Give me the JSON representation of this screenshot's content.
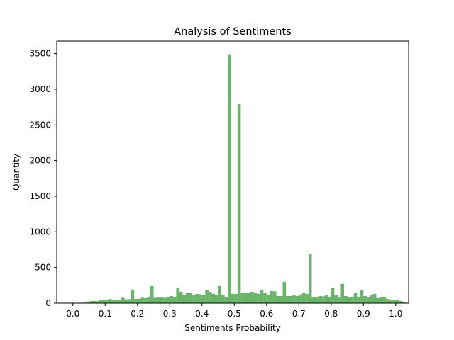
{
  "chart_data": {
    "type": "bar",
    "title": "Analysis of Sentiments",
    "xlabel": "Sentiments Probability",
    "ylabel": "Quantity",
    "xlim": [
      -0.05,
      1.04
    ],
    "ylim": [
      0,
      3675
    ],
    "grid": false,
    "bar_color": "#5aab5a",
    "bar_opacity": 0.9,
    "x_ticks": [
      0.0,
      0.1,
      0.2,
      0.3,
      0.4,
      0.5,
      0.6,
      0.7,
      0.8,
      0.9,
      1.0
    ],
    "x_tick_labels": [
      "0.0",
      "0.1",
      "0.2",
      "0.3",
      "0.4",
      "0.5",
      "0.6",
      "0.7",
      "0.8",
      "0.9",
      "1.0"
    ],
    "y_ticks": [
      0,
      500,
      1000,
      1500,
      2000,
      2500,
      3000,
      3500
    ],
    "y_tick_labels": [
      "0",
      "500",
      "1000",
      "1500",
      "2000",
      "2500",
      "3000",
      "3500"
    ],
    "bin_start": 0.0,
    "bin_width": 0.01,
    "values": [
      0,
      0,
      2,
      8,
      20,
      28,
      32,
      28,
      42,
      45,
      42,
      60,
      40,
      50,
      45,
      75,
      55,
      55,
      190,
      60,
      60,
      75,
      70,
      80,
      240,
      75,
      80,
      85,
      75,
      90,
      100,
      90,
      210,
      160,
      120,
      140,
      140,
      120,
      130,
      125,
      120,
      190,
      160,
      130,
      110,
      240,
      120,
      80,
      3490,
      130,
      130,
      2790,
      140,
      140,
      140,
      160,
      140,
      130,
      190,
      150,
      120,
      170,
      165,
      100,
      100,
      300,
      100,
      100,
      110,
      100,
      120,
      150,
      130,
      690,
      80,
      90,
      100,
      95,
      110,
      90,
      210,
      110,
      90,
      270,
      100,
      90,
      80,
      140,
      90,
      180,
      100,
      80,
      120,
      130,
      70,
      80,
      90,
      60,
      50,
      45,
      45,
      30,
      10
    ]
  }
}
